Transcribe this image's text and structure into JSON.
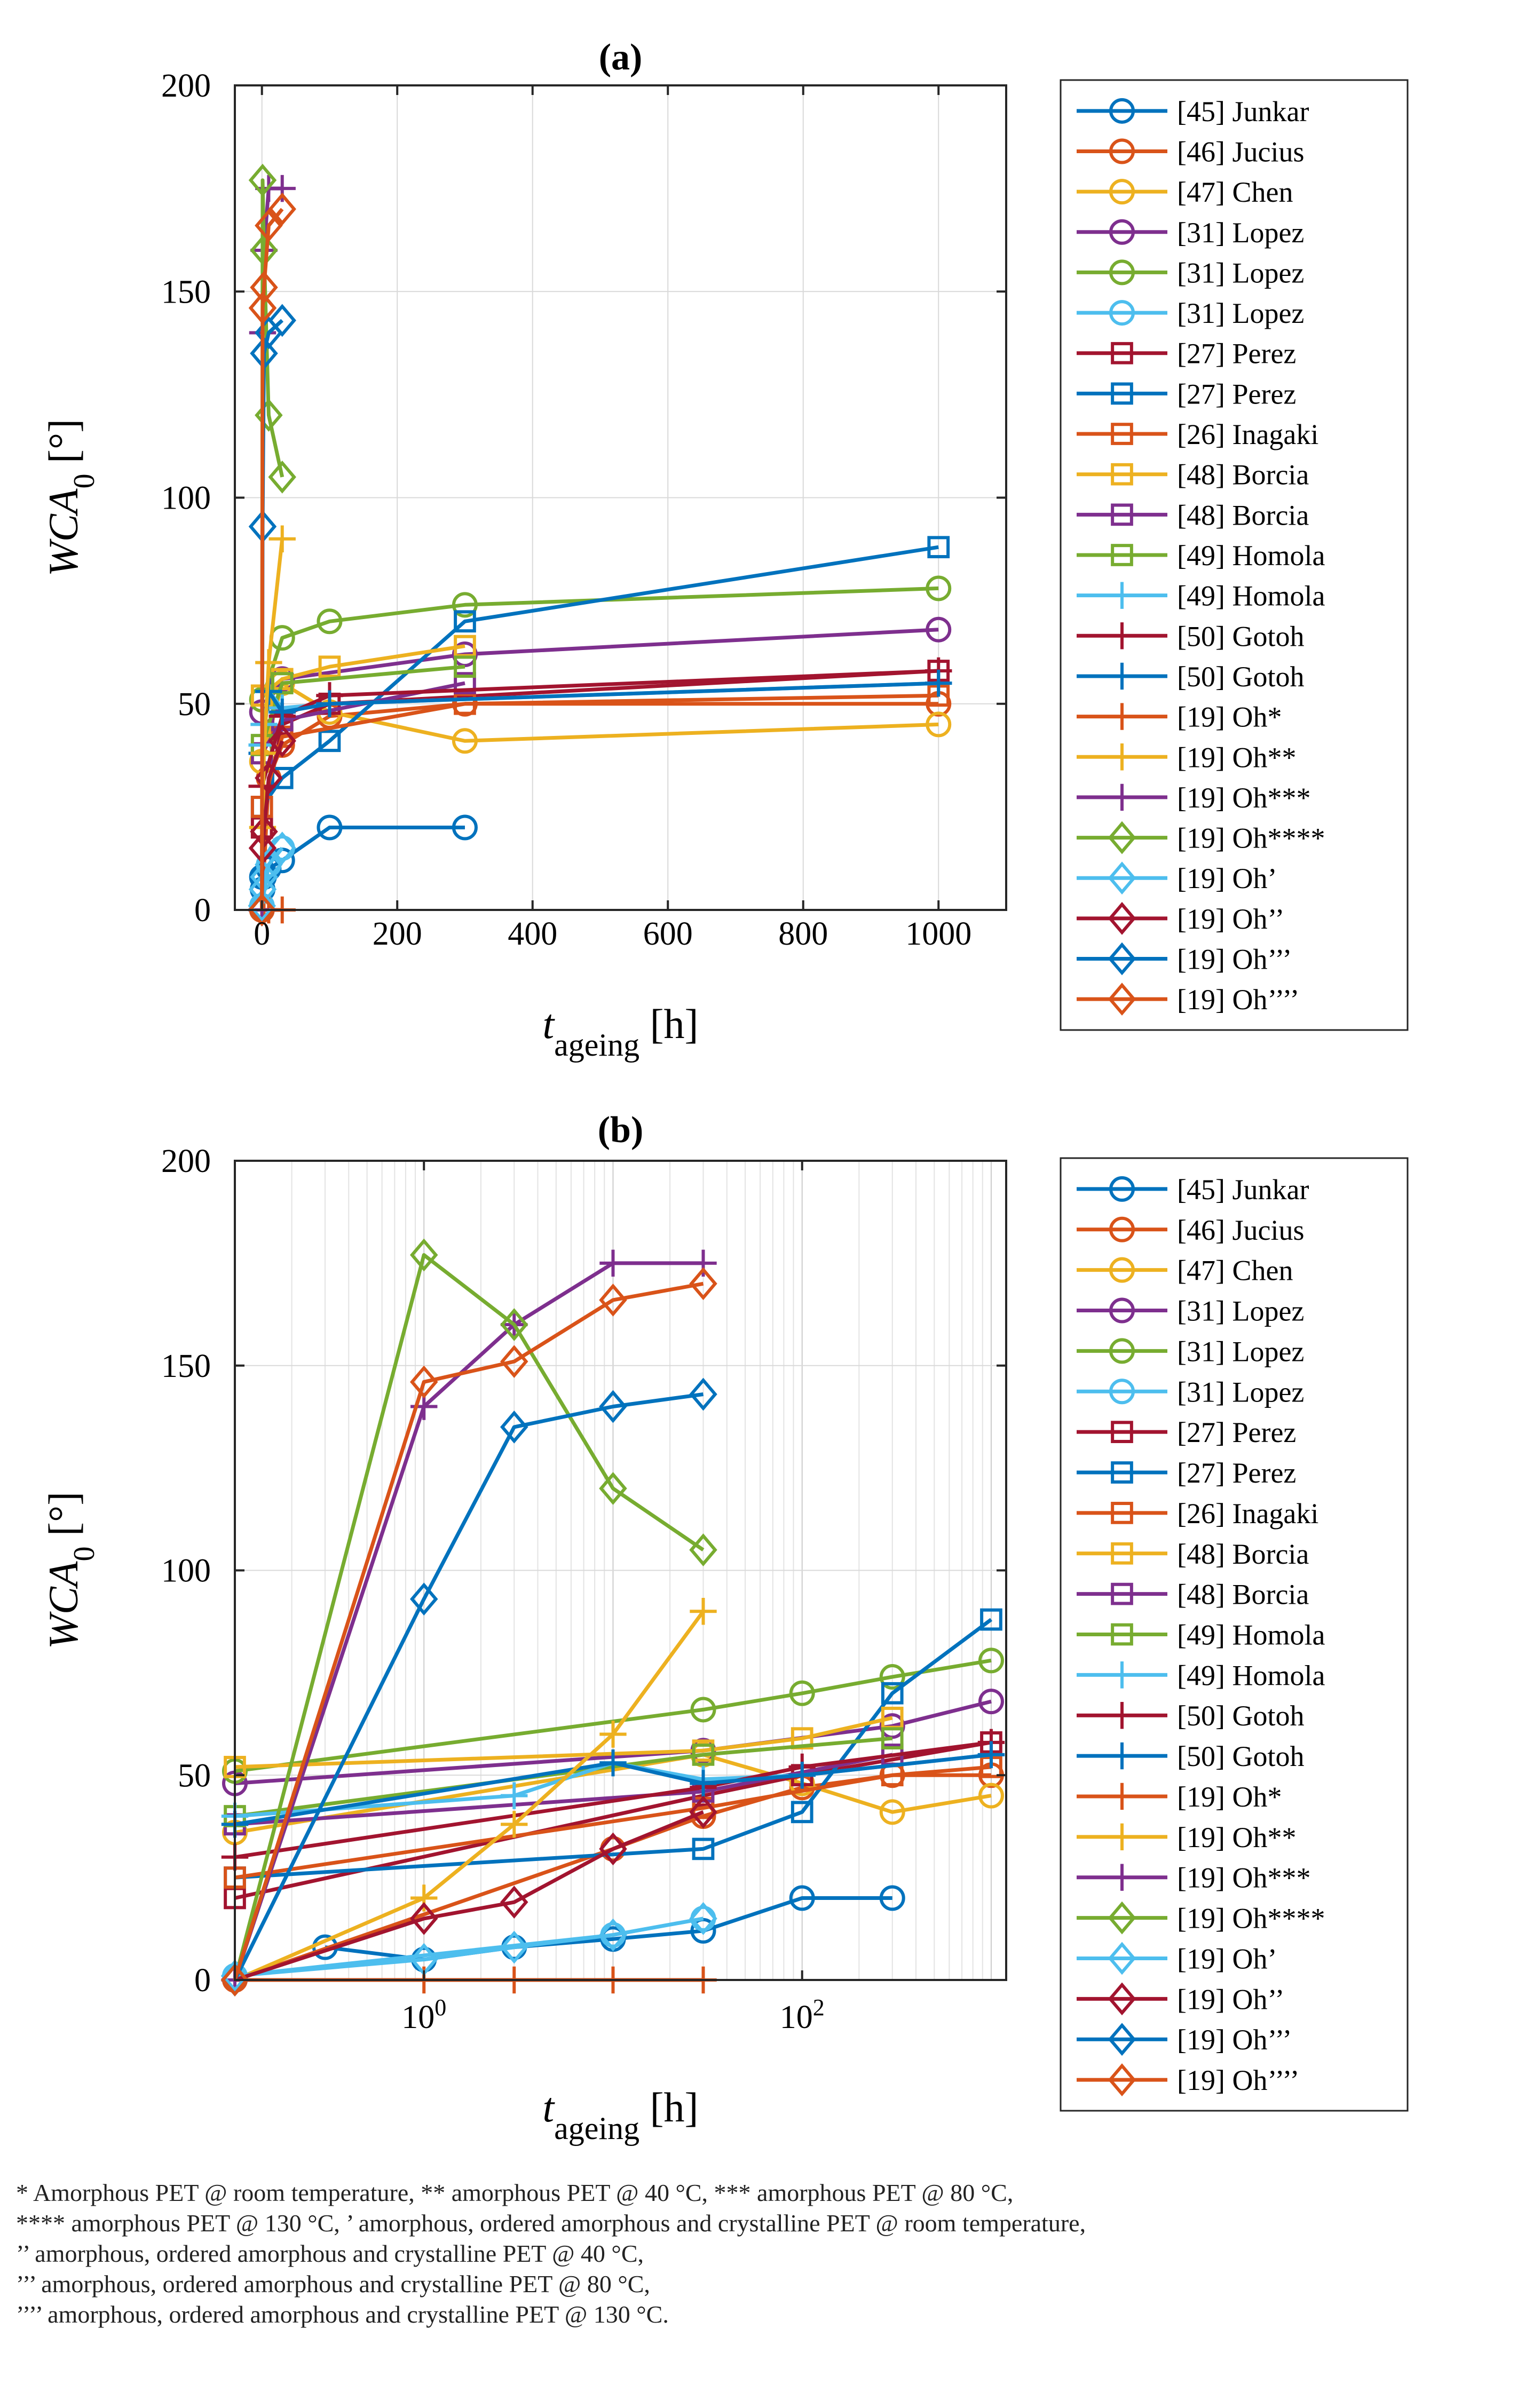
{
  "colors": {
    "blue": "#0072BD",
    "orange": "#D95319",
    "yellow": "#EDB120",
    "purple": "#7E2F8E",
    "green": "#77AC30",
    "cyan": "#4DBEEE",
    "red": "#A2142F"
  },
  "chart_data": [
    {
      "type": "line",
      "title": "(a)",
      "xlabel": "t",
      "xlabel_subscript": "ageing",
      "xlabel_unit": "[h]",
      "ylabel": "WCA",
      "ylabel_subscript": "0",
      "ylabel_unit": "[°]",
      "xscale": "linear",
      "xlim": [
        -40,
        1100
      ],
      "ylim": [
        0,
        200
      ],
      "xticks": [
        0,
        200,
        400,
        600,
        800,
        1000
      ],
      "xtick_labels": [
        "0",
        "200",
        "400",
        "600",
        "800",
        "1000"
      ],
      "yticks": [
        0,
        50,
        100,
        150,
        200
      ],
      "ytick_labels": [
        "0",
        "50",
        "100",
        "150",
        "200"
      ],
      "grid": true,
      "legend": "right-outside"
    },
    {
      "type": "line",
      "title": "(b)",
      "xlabel": "t",
      "xlabel_subscript": "ageing",
      "xlabel_unit": "[h]",
      "ylabel": "WCA",
      "ylabel_subscript": "0",
      "ylabel_unit": "[°]",
      "xscale": "log",
      "xlim": [
        0.1,
        1200
      ],
      "ylim": [
        0,
        200
      ],
      "xticks": [
        1,
        100
      ],
      "xtick_labels": [
        "10^0",
        "10^2"
      ],
      "yticks": [
        0,
        50,
        100,
        150,
        200
      ],
      "ytick_labels": [
        "0",
        "50",
        "100",
        "150",
        "200"
      ],
      "grid": true,
      "legend": "right-outside"
    }
  ],
  "series": [
    {
      "name": "[45] Junkar",
      "color": "#0072BD",
      "marker": "o",
      "x": [
        0.3,
        1,
        3,
        10,
        30,
        100,
        300
      ],
      "y": [
        8,
        5,
        8,
        10,
        12,
        20,
        20
      ]
    },
    {
      "name": "[46] Jucius",
      "color": "#D95319",
      "marker": "o",
      "x": [
        0.1,
        10,
        30,
        100,
        300,
        1000
      ],
      "y": [
        0,
        32,
        40,
        47,
        50,
        50
      ]
    },
    {
      "name": "[47] Chen",
      "color": "#EDB120",
      "marker": "o",
      "x": [
        0.1,
        30,
        100,
        300,
        1000
      ],
      "y": [
        36,
        55,
        48,
        41,
        45
      ]
    },
    {
      "name": "[31] Lopez",
      "color": "#7E2F8E",
      "marker": "o",
      "x": [
        0.1,
        30,
        300,
        1000
      ],
      "y": [
        48,
        56,
        62,
        68
      ]
    },
    {
      "name": "[31] Lopez",
      "color": "#77AC30",
      "marker": "o",
      "x": [
        0.1,
        30,
        100,
        300,
        1000
      ],
      "y": [
        51,
        66,
        70,
        74,
        78
      ]
    },
    {
      "name": "[31] Lopez",
      "color": "#4DBEEE",
      "marker": "o",
      "x": [
        0.1,
        10,
        30
      ],
      "y": [
        1,
        11,
        15
      ]
    },
    {
      "name": "[27] Perez",
      "color": "#A2142F",
      "marker": "s",
      "x": [
        0.1,
        30,
        100,
        1000
      ],
      "y": [
        20,
        45,
        50,
        58
      ]
    },
    {
      "name": "[27] Perez",
      "color": "#0072BD",
      "marker": "s",
      "x": [
        0.1,
        30,
        100,
        300,
        1000
      ],
      "y": [
        25,
        32,
        41,
        70,
        88
      ]
    },
    {
      "name": "[26] Inagaki",
      "color": "#D95319",
      "marker": "s",
      "x": [
        0.1,
        30,
        300,
        1000
      ],
      "y": [
        25,
        42,
        50,
        52
      ]
    },
    {
      "name": "[48] Borcia",
      "color": "#EDB120",
      "marker": "s",
      "x": [
        0.1,
        30,
        100,
        300
      ],
      "y": [
        52,
        56,
        59,
        64
      ]
    },
    {
      "name": "[48] Borcia",
      "color": "#7E2F8E",
      "marker": "s",
      "x": [
        0.1,
        30,
        300
      ],
      "y": [
        38,
        46,
        55
      ]
    },
    {
      "name": "[49] Homola",
      "color": "#77AC30",
      "marker": "s",
      "x": [
        0.1,
        30,
        300
      ],
      "y": [
        40,
        55,
        59
      ]
    },
    {
      "name": "[49] Homola",
      "color": "#4DBEEE",
      "marker": "+",
      "x": [
        0.1,
        3,
        10,
        30,
        100,
        1000
      ],
      "y": [
        40,
        45,
        53,
        49,
        50,
        55
      ]
    },
    {
      "name": "[50] Gotoh",
      "color": "#A2142F",
      "marker": "+",
      "x": [
        0.1,
        30,
        100,
        1000
      ],
      "y": [
        30,
        47,
        52,
        58
      ]
    },
    {
      "name": "[50] Gotoh",
      "color": "#0072BD",
      "marker": "+",
      "x": [
        0.1,
        10,
        30,
        100,
        1000
      ],
      "y": [
        38,
        53,
        48,
        50,
        55
      ]
    },
    {
      "name": "[19] Oh*",
      "color": "#D95319",
      "marker": "+",
      "x": [
        0.1,
        1,
        3,
        10,
        30
      ],
      "y": [
        0,
        0,
        0,
        0,
        0
      ]
    },
    {
      "name": "[19] Oh**",
      "color": "#EDB120",
      "marker": "+",
      "x": [
        0.1,
        1,
        3,
        10,
        30
      ],
      "y": [
        0,
        20,
        38,
        60,
        90
      ]
    },
    {
      "name": "[19] Oh***",
      "color": "#7E2F8E",
      "marker": "+",
      "x": [
        0.1,
        1,
        3,
        10,
        30
      ],
      "y": [
        0,
        140,
        160,
        175,
        175
      ]
    },
    {
      "name": "[19] Oh****",
      "color": "#77AC30",
      "marker": "d",
      "x": [
        0.1,
        1,
        3,
        10,
        30
      ],
      "y": [
        0,
        177,
        160,
        120,
        105
      ]
    },
    {
      "name": "[19] Oh’",
      "color": "#4DBEEE",
      "marker": "d",
      "x": [
        0.1,
        1,
        3,
        10,
        30
      ],
      "y": [
        1,
        5,
        8,
        11,
        15
      ]
    },
    {
      "name": "[19] Oh’’",
      "color": "#A2142F",
      "marker": "d",
      "x": [
        0.1,
        1,
        3,
        10,
        30
      ],
      "y": [
        0,
        15,
        19,
        32,
        41
      ]
    },
    {
      "name": "[19] Oh’’’",
      "color": "#0072BD",
      "marker": "d",
      "x": [
        0.1,
        1,
        3,
        10,
        30
      ],
      "y": [
        0,
        93,
        135,
        140,
        143
      ]
    },
    {
      "name": "[19] Oh’’’’",
      "color": "#D95319",
      "marker": "d",
      "x": [
        0.1,
        1,
        3,
        10,
        30
      ],
      "y": [
        0,
        146,
        151,
        166,
        170
      ]
    }
  ],
  "footnotes": [
    "* Amorphous PET @ room temperature, ** amorphous PET @ 40 °C, *** amorphous PET @ 80 °C,",
    "**** amorphous PET @ 130 °C, ’ amorphous, ordered amorphous and crystalline PET @ room temperature,",
    "’’ amorphous, ordered amorphous and crystalline PET @ 40 °C,",
    "’’’ amorphous, ordered amorphous and crystalline PET @ 80 °C,",
    "’’’’ amorphous, ordered amorphous and crystalline PET @ 130 °C."
  ]
}
